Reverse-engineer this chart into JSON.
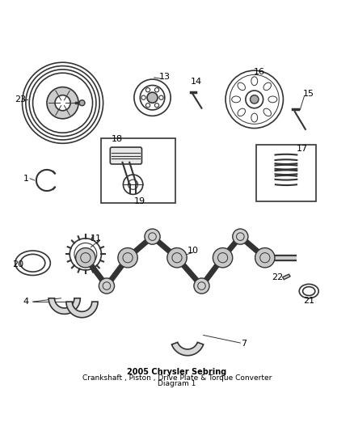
{
  "title": "2005 Chrysler Sebring\nCrankshaft , Piston , Drive Plate & Torque Converter\nDiagram 1",
  "background_color": "#ffffff",
  "line_color": "#333333",
  "text_color": "#000000",
  "fig_width": 4.38,
  "fig_height": 5.33,
  "dpi": 100
}
